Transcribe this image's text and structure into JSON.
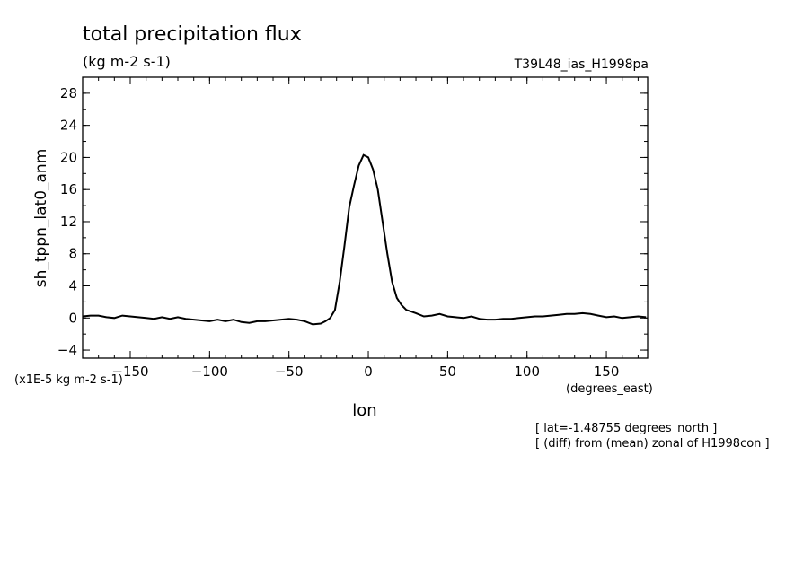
{
  "chart_data": {
    "type": "line",
    "title": "total precipitation flux",
    "units_label": "(kg m-2 s-1)",
    "experiment": "T39L48_ias_H1998pa",
    "xlabel": "lon",
    "xunits": "(degrees_east)",
    "ylabel": "sh_tppn_lat0_anm",
    "yscale_label": "(x1E-5 kg m-2 s-1)",
    "xlim": [
      -180,
      176
    ],
    "ylim": [
      -5,
      30
    ],
    "xticks": [
      -150,
      -100,
      -50,
      0,
      50,
      100,
      150
    ],
    "yticks": [
      -4,
      0,
      4,
      8,
      12,
      16,
      20,
      24,
      28
    ],
    "notes": [
      "[ lat=-1.48755 degrees_north ]",
      "[ (diff) from (mean) zonal of H1998con ]"
    ],
    "series": [
      {
        "x": [
          -180,
          -175,
          -170,
          -165,
          -160,
          -155,
          -150,
          -145,
          -140,
          -135,
          -130,
          -125,
          -120,
          -115,
          -110,
          -105,
          -100,
          -95,
          -90,
          -85,
          -80,
          -75,
          -70,
          -65,
          -60,
          -55,
          -50,
          -45,
          -40,
          -35,
          -30,
          -27,
          -24,
          -21,
          -18,
          -15,
          -12,
          -9,
          -6,
          -3,
          0,
          3,
          6,
          9,
          12,
          15,
          18,
          21,
          24,
          27,
          30,
          35,
          40,
          45,
          50,
          55,
          60,
          65,
          70,
          75,
          80,
          85,
          90,
          95,
          100,
          105,
          110,
          115,
          120,
          125,
          130,
          135,
          140,
          145,
          150,
          155,
          160,
          165,
          170,
          175
        ],
        "y": [
          0.2,
          0.3,
          0.3,
          0.1,
          0.0,
          0.3,
          0.2,
          0.1,
          0.0,
          -0.1,
          0.1,
          -0.1,
          0.1,
          -0.1,
          -0.2,
          -0.3,
          -0.4,
          -0.2,
          -0.4,
          -0.2,
          -0.5,
          -0.6,
          -0.4,
          -0.4,
          -0.3,
          -0.2,
          -0.1,
          -0.2,
          -0.4,
          -0.8,
          -0.7,
          -0.4,
          0.0,
          1.0,
          4.5,
          9.0,
          13.8,
          16.5,
          19.0,
          20.3,
          20.0,
          18.5,
          16.0,
          12.0,
          8.0,
          4.5,
          2.5,
          1.6,
          1.0,
          0.8,
          0.6,
          0.2,
          0.3,
          0.5,
          0.2,
          0.1,
          0.0,
          0.2,
          -0.1,
          -0.2,
          -0.2,
          -0.1,
          -0.1,
          0.0,
          0.1,
          0.2,
          0.2,
          0.3,
          0.4,
          0.5,
          0.5,
          0.6,
          0.5,
          0.3,
          0.1,
          0.2,
          0.0,
          0.1,
          0.2,
          0.1
        ]
      }
    ]
  }
}
